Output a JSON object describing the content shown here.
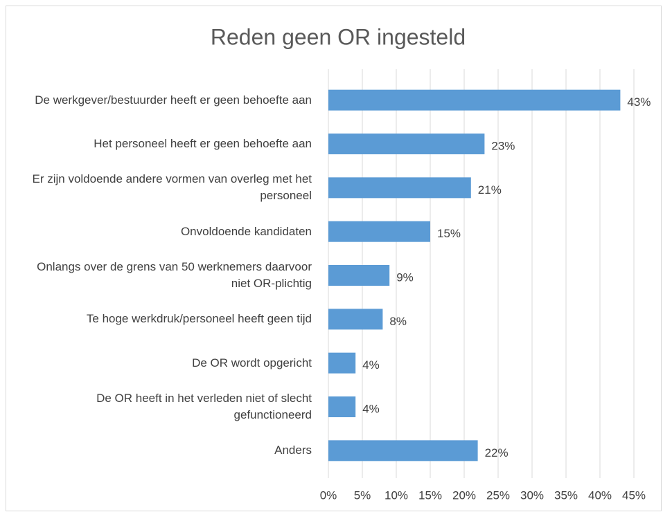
{
  "chart_data": {
    "type": "barh",
    "title": "Reden geen OR ingesteld",
    "categories": [
      "De werkgever/bestuurder heeft er geen behoefte aan",
      "Het personeel heeft er geen behoefte aan",
      "Er zijn voldoende andere vormen van overleg met het personeel",
      "Onvoldoende kandidaten",
      "Onlangs over de grens van 50 werknemers daarvoor niet OR-plichtig",
      "Te hoge werkdruk/personeel heeft geen tijd",
      "De OR wordt opgericht",
      "De OR heeft in het verleden niet of slecht gefunctioneerd",
      "Anders"
    ],
    "values": [
      43,
      23,
      21,
      15,
      9,
      8,
      4,
      4,
      22
    ],
    "value_labels": [
      "43%",
      "23%",
      "21%",
      "15%",
      "9%",
      "8%",
      "4%",
      "4%",
      "22%"
    ],
    "color": "#5b9bd5",
    "xlim": [
      0,
      45
    ],
    "xticks": [
      {
        "value": 0,
        "label": "0%"
      },
      {
        "value": 5,
        "label": "5%"
      },
      {
        "value": 10,
        "label": "10%"
      },
      {
        "value": 15,
        "label": "15%"
      },
      {
        "value": 20,
        "label": "20%"
      },
      {
        "value": 25,
        "label": "25%"
      },
      {
        "value": 30,
        "label": "30%"
      },
      {
        "value": 35,
        "label": "35%"
      },
      {
        "value": 40,
        "label": "40%"
      },
      {
        "value": 45,
        "label": "45%"
      }
    ],
    "grid": true
  }
}
